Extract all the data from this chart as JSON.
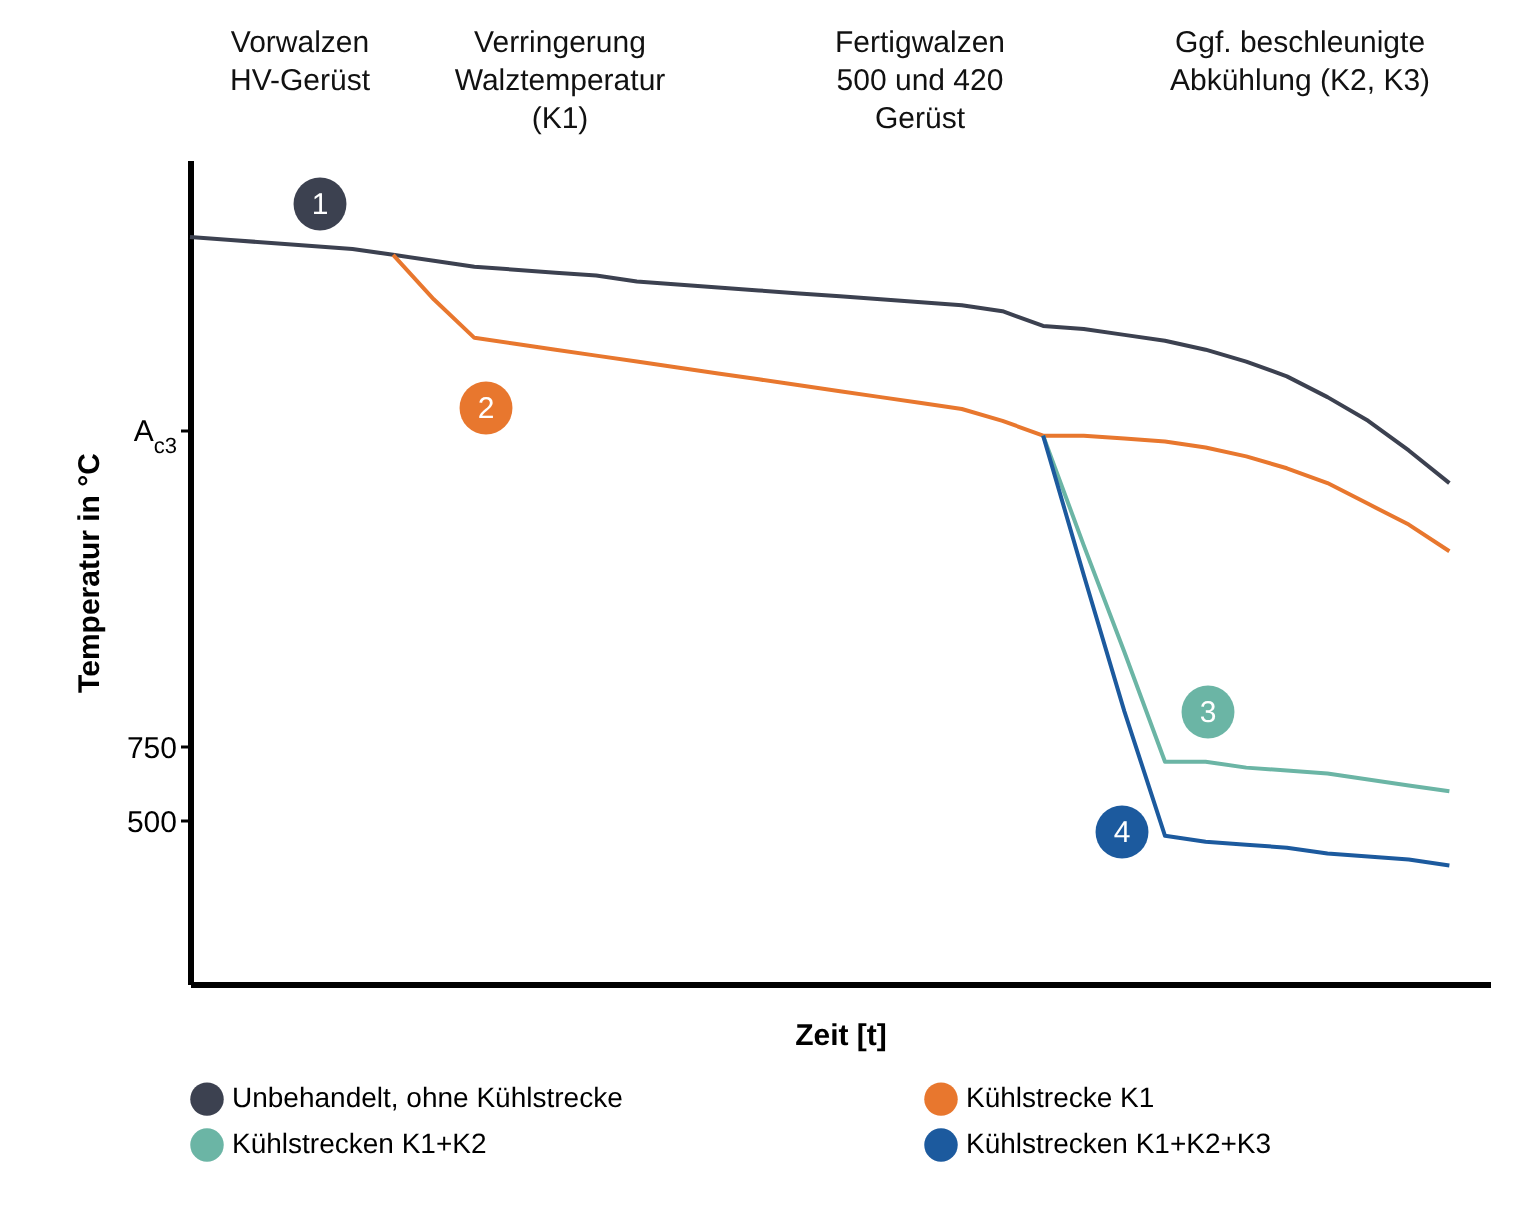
{
  "chart_data": {
    "type": "line",
    "xlabel": "Zeit [t]",
    "ylabel": "Temperatur in °C",
    "categories": [
      null,
      null,
      null,
      null,
      null,
      null,
      null,
      null,
      null,
      null,
      null,
      null,
      null,
      null,
      null,
      null,
      null,
      null,
      null,
      null,
      null,
      null,
      null,
      null,
      null,
      null,
      null,
      null,
      null,
      null,
      null,
      null
    ],
    "series": [
      {
        "name": "Unbehandelt, ohne Kühlstrecke",
        "color": "#3c4150",
        "values": [
          2470,
          2460,
          2450,
          2440,
          2430,
          2410,
          2390,
          2370,
          2360,
          2350,
          2340,
          2320,
          2310,
          2300,
          2290,
          2280,
          2270,
          2260,
          2250,
          2240,
          2220,
          2170,
          2160,
          2140,
          2120,
          2090,
          2050,
          2000,
          1930,
          1850,
          1750,
          1640
        ]
      },
      {
        "name": "Kühlstrecke K1",
        "color": "#e8772e",
        "values": [
          null,
          null,
          null,
          null,
          null,
          2410,
          2260,
          2130,
          2110,
          2090,
          2070,
          2050,
          2030,
          2010,
          1990,
          1970,
          1950,
          1930,
          1910,
          1890,
          1850,
          1800,
          1800,
          1790,
          1780,
          1760,
          1730,
          1690,
          1640,
          1570,
          1500,
          1410
        ]
      },
      {
        "name": "Kühlstrecken K1+K2",
        "color": "#6bb5a5",
        "values": [
          null,
          null,
          null,
          null,
          null,
          null,
          null,
          null,
          null,
          null,
          null,
          null,
          null,
          null,
          null,
          null,
          null,
          null,
          null,
          null,
          null,
          1800,
          1430,
          1070,
          700,
          700,
          680,
          670,
          660,
          640,
          620,
          600
        ]
      },
      {
        "name": "Kühlstrecken K1+K2+K3",
        "color": "#1c5a9e",
        "values": [
          null,
          null,
          null,
          null,
          null,
          null,
          null,
          null,
          null,
          null,
          null,
          null,
          null,
          null,
          null,
          null,
          null,
          null,
          null,
          null,
          null,
          1800,
          1330,
          870,
          450,
          430,
          420,
          410,
          390,
          380,
          370,
          350
        ]
      }
    ],
    "ylim": [
      -50,
      2730
    ],
    "yticks": [
      500,
      750,
      {
        "value": 1820,
        "label": "A$_{c3}$"
      }
    ],
    "annotations": [
      "Vorwalzen\nHV-Gerüst",
      "Verringerung\nWalztemperatur\n(K1)",
      "Fertigwalzen\n500 und 420\nGerüst",
      "Ggf. beschleunigte\nAbkühlung (K2, K3)",
      "1",
      "2",
      "3",
      "4"
    ],
    "legend": "bottom",
    "marker": "none",
    "line_style": "solid",
    "grid": false
  }
}
